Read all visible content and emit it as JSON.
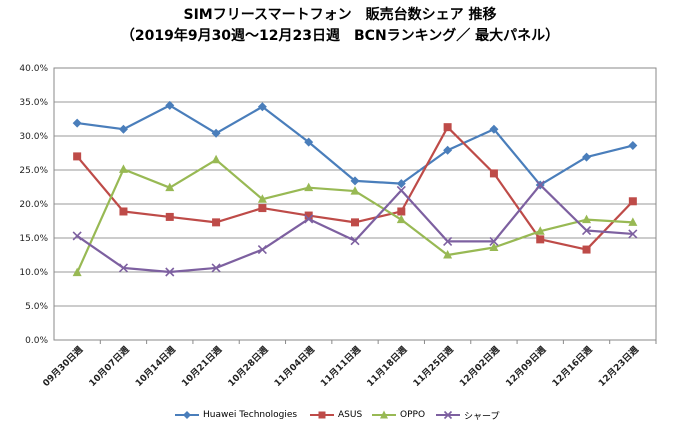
{
  "title": "SIMフリースマートフォン　販売台数シェア 推移",
  "subtitle": "（2019年9月30週～12月23日週　BCNランキング／ 最大パネル）",
  "chart_data": {
    "type": "line",
    "categories": [
      "09月30日週",
      "10月07日週",
      "10月14日週",
      "10月21日週",
      "10月28日週",
      "11月04日週",
      "11月11日週",
      "11月18日週",
      "11月25日週",
      "12月02日週",
      "12月09日週",
      "12月16日週",
      "12月23日週"
    ],
    "ylim": [
      0,
      40
    ],
    "yticks": [
      "0.0%",
      "5.0%",
      "10.0%",
      "15.0%",
      "20.0%",
      "25.0%",
      "30.0%",
      "35.0%",
      "40.0%"
    ],
    "grid": true,
    "legend": "bottom",
    "series": [
      {
        "name": "Huawei Technologies",
        "color": "#4a7ebb",
        "marker": "diamond",
        "values": [
          31.9,
          31.0,
          34.5,
          30.4,
          34.3,
          29.1,
          23.4,
          23.0,
          27.9,
          31.0,
          22.8,
          26.9,
          28.6
        ]
      },
      {
        "name": "ASUS",
        "color": "#be4b48",
        "marker": "square",
        "values": [
          27.0,
          18.9,
          18.1,
          17.3,
          19.4,
          18.3,
          17.3,
          18.9,
          31.3,
          24.5,
          14.8,
          13.3,
          20.4
        ]
      },
      {
        "name": "OPPO",
        "color": "#98b954",
        "marker": "triangle",
        "values": [
          9.9,
          25.1,
          22.4,
          26.5,
          20.7,
          22.4,
          21.9,
          17.7,
          12.5,
          13.6,
          16.0,
          17.7,
          17.3
        ]
      },
      {
        "name": "シャープ",
        "color": "#7d60a0",
        "marker": "x",
        "values": [
          15.3,
          10.6,
          10.0,
          10.6,
          13.3,
          17.8,
          14.6,
          22.0,
          14.5,
          14.5,
          22.8,
          16.1,
          15.6
        ]
      }
    ]
  }
}
